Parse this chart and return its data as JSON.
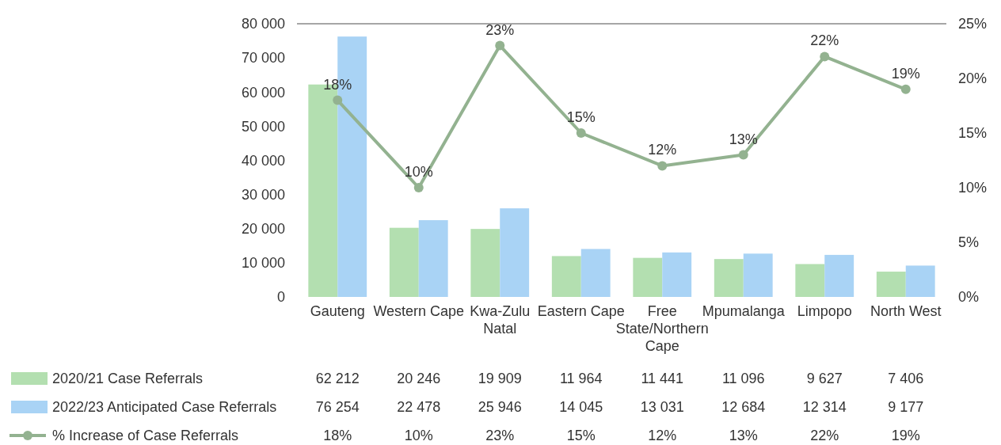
{
  "chart_data": {
    "type": "bar",
    "categories": [
      "Gauteng",
      "Western Cape",
      "Kwa-Zulu Natal",
      "Eastern Cape",
      "Free State/Northern Cape",
      "Mpumalanga",
      "Limpopo",
      "North West"
    ],
    "series": [
      {
        "name": "2020/21 Case Referrals",
        "color": "#b3dfb0",
        "values": [
          62212,
          20246,
          19909,
          11964,
          11441,
          11096,
          9627,
          7406
        ],
        "value_labels": [
          "62 212",
          "20 246",
          "19 909",
          "11 964",
          "11 441",
          "11 096",
          "9 627",
          "7 406"
        ]
      },
      {
        "name": "2022/23 Anticipated Case Referrals",
        "color": "#a9d3f5",
        "values": [
          76254,
          22478,
          25946,
          14045,
          13031,
          12684,
          12314,
          9177
        ],
        "value_labels": [
          "76 254",
          "22 478",
          "25 946",
          "14 045",
          "13 031",
          "12 684",
          "12 314",
          "9 177"
        ]
      },
      {
        "name": "% Increase of Case Referrals",
        "type": "line",
        "axis": "y2",
        "color": "#93b290",
        "values": [
          18,
          10,
          23,
          15,
          12,
          13,
          22,
          19
        ],
        "value_labels": [
          "18%",
          "10%",
          "23%",
          "15%",
          "12%",
          "13%",
          "22%",
          "19%"
        ]
      }
    ],
    "ylim": [
      0,
      80000
    ],
    "yticks": [
      {
        "value": 0,
        "label": "0"
      },
      {
        "value": 10000,
        "label": "10 000"
      },
      {
        "value": 20000,
        "label": "20 000"
      },
      {
        "value": 30000,
        "label": "30 000"
      },
      {
        "value": 40000,
        "label": "40 000"
      },
      {
        "value": 50000,
        "label": "50 000"
      },
      {
        "value": 60000,
        "label": "60 000"
      },
      {
        "value": 70000,
        "label": "70 000"
      },
      {
        "value": 80000,
        "label": "80 000"
      }
    ],
    "y2lim": [
      0,
      25
    ],
    "y2ticks": [
      {
        "value": 0,
        "label": "0%"
      },
      {
        "value": 5,
        "label": "5%"
      },
      {
        "value": 10,
        "label": "10%"
      },
      {
        "value": 15,
        "label": "15%"
      },
      {
        "value": 20,
        "label": "20%"
      },
      {
        "value": 25,
        "label": "25%"
      }
    ],
    "marker": "circle",
    "line_style": "solid",
    "legend": "bottom"
  }
}
